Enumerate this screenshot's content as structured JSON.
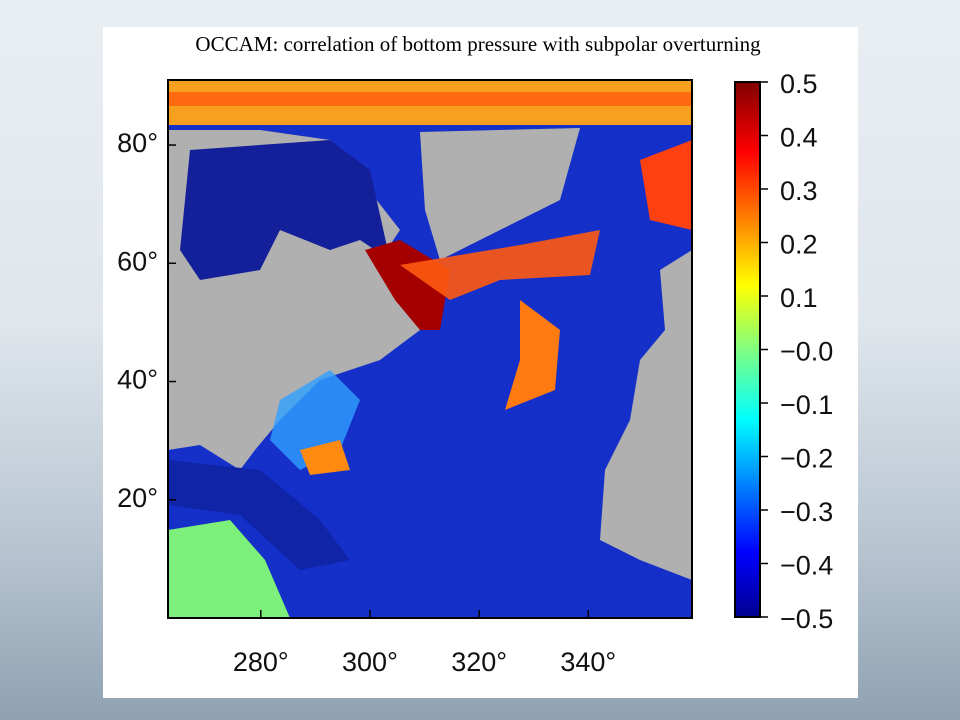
{
  "chart_data": {
    "type": "map",
    "title": "OCCAM: correlation  of bottom pressure with subpolar overturning",
    "xlim": [
      263,
      359
    ],
    "xticks": [
      {
        "value": 280,
        "label": "280°"
      },
      {
        "value": 300,
        "label": "300°"
      },
      {
        "value": 320,
        "label": "320°"
      },
      {
        "value": 340,
        "label": "340°"
      }
    ],
    "ylim": [
      0,
      91
    ],
    "yticks": [
      {
        "value": 20,
        "label": "20°"
      },
      {
        "value": 40,
        "label": "40°"
      },
      {
        "value": 60,
        "label": "60°"
      },
      {
        "value": 80,
        "label": "80°"
      }
    ],
    "colorbar": {
      "lim": [
        -0.5,
        0.5
      ],
      "ticks": [
        0.5,
        0.4,
        0.3,
        0.2,
        0.1,
        {
          "value": 0,
          "label": "−0.0"
        },
        {
          "value": -0.1,
          "label": "−0.1"
        },
        {
          "value": -0.2,
          "label": "−0.2"
        },
        {
          "value": -0.3,
          "label": "−0.3"
        },
        {
          "value": -0.4,
          "label": "−0.4"
        },
        {
          "value": -0.5,
          "label": "−0.5"
        }
      ]
    }
  }
}
